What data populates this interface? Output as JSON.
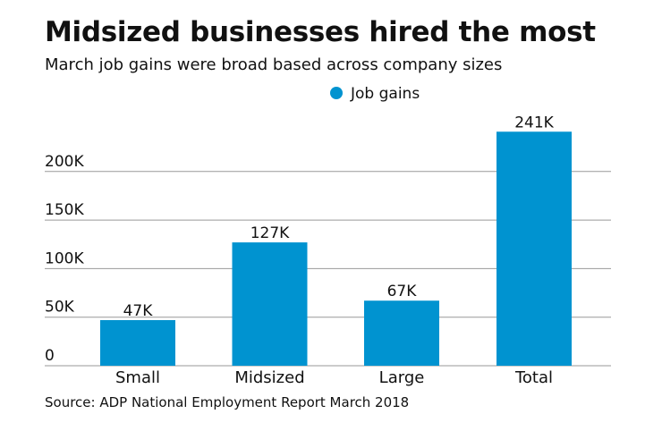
{
  "chart_data": {
    "type": "bar",
    "title": "Midsized businesses hired the most",
    "subtitle": "March job gains were broad based across company sizes",
    "source": "Source: ADP National Employment Report March 2018",
    "categories": [
      "Small",
      "Midsized",
      "Large",
      "Total"
    ],
    "series": [
      {
        "name": "Job gains",
        "values": [
          47,
          127,
          67,
          241
        ],
        "labels": [
          "47K",
          "127K",
          "67K",
          "241K"
        ]
      }
    ],
    "yticks": [
      0,
      50,
      100,
      150,
      200
    ],
    "ytick_labels": [
      "0",
      "50K",
      "100K",
      "150K",
      "200K"
    ],
    "ylim": [
      0,
      250
    ],
    "grid": true,
    "legend": "top-center",
    "colors": {
      "bar": "#0093d0",
      "grid": "#999999"
    }
  }
}
